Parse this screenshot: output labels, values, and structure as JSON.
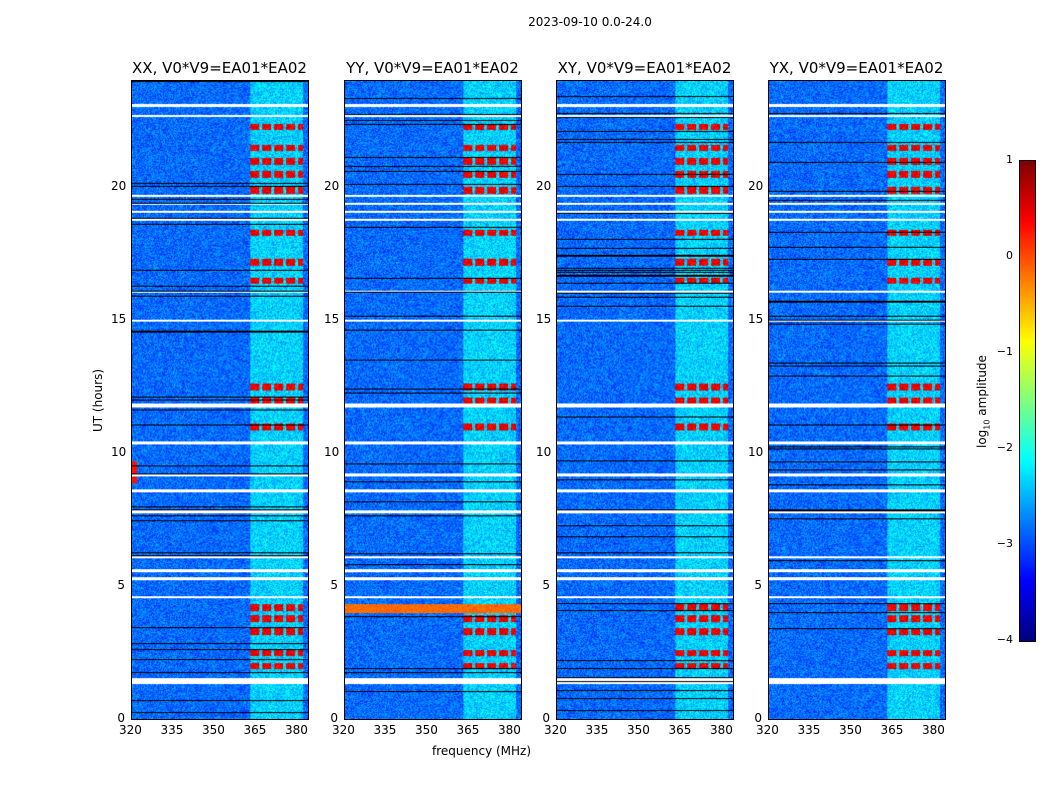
{
  "title": "2023-09-10 0.0-24.0",
  "chart_data": {
    "type": "heatmap",
    "title": "2023-09-10 0.0-24.0",
    "xlabel": "frequency (MHz)",
    "ylabel": "UT (hours)",
    "xlim": [
      320,
      384
    ],
    "ylim": [
      0,
      24
    ],
    "xticks": [
      "320",
      "335",
      "350",
      "365",
      "380"
    ],
    "yticks": [
      "0",
      "5",
      "10",
      "15",
      "20"
    ],
    "panels": [
      {
        "title": "XX, V0*V9=EA01*EA02"
      },
      {
        "title": "YY, V0*V9=EA01*EA02"
      },
      {
        "title": "XY, V0*V9=EA01*EA02"
      },
      {
        "title": "YX, V0*V9=EA01*EA02"
      }
    ],
    "background_log_amplitude": -3.2,
    "rfi_frequency_range_mhz": [
      363,
      382
    ],
    "flagged_hours": [
      1.4,
      1.5,
      4.6,
      5.3,
      5.6,
      6.1,
      7.8,
      8.6,
      9.2,
      10.4,
      11.8,
      11.9,
      12.6,
      15.0,
      16.1,
      18.8,
      19.1,
      19.4,
      19.7,
      20.9,
      22.7,
      23.1
    ],
    "rfi_hours": [
      2.0,
      2.5,
      3.3,
      3.8,
      4.2,
      11.0,
      12.0,
      12.5,
      16.5,
      17.2,
      18.3,
      19.9,
      20.5,
      21.0,
      21.5,
      22.3
    ],
    "colorbar": {
      "label": "log10 amplitude",
      "label_main": "log",
      "label_sub": "10",
      "label_rest": " amplitude",
      "range": [
        -4,
        1
      ],
      "ticks": [
        "1",
        "0",
        "−1",
        "−2",
        "−3",
        "−4"
      ],
      "colormap": "jet"
    }
  }
}
